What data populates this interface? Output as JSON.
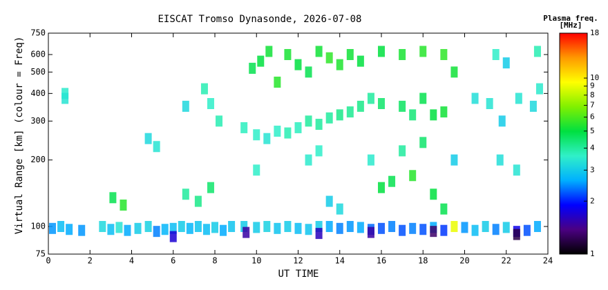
{
  "chart_data": {
    "type": "scatter",
    "title": "EISCAT Tromso Dynasonde, 2026-07-08",
    "x_label": "UT TIME",
    "y_label": "Virtual Range [km] (colour = Freq)",
    "colorbar_title": "Plasma freq.",
    "colorbar_unit": "[MHz]",
    "xlim": [
      0,
      24
    ],
    "xticks": [
      0,
      2,
      4,
      6,
      8,
      10,
      12,
      14,
      16,
      18,
      20,
      22,
      24
    ],
    "ylim": [
      75,
      750
    ],
    "yticks": [
      75,
      100,
      200,
      300,
      400,
      500,
      600,
      750
    ],
    "ylog": true,
    "clim": [
      1,
      18
    ],
    "cticks": [
      1,
      2,
      3,
      4,
      5,
      6,
      7,
      8,
      9,
      10,
      18
    ],
    "clog": true,
    "colormap": [
      "#000000",
      "#4b0082",
      "#0000ff",
      "#00b0ff",
      "#30f0c8",
      "#00e040",
      "#80f000",
      "#ffff00",
      "#ff9900",
      "#ff0000"
    ],
    "x": [
      0.2,
      0.6,
      1.0,
      1.6,
      2.6,
      3.0,
      3.4,
      3.8,
      4.3,
      4.8,
      5.2,
      5.6,
      6.0,
      6.4,
      6.8,
      7.2,
      7.6,
      8.0,
      8.4,
      8.8,
      9.4,
      10.0,
      10.5,
      11.0,
      11.5,
      12.0,
      12.5,
      13.0,
      13.5,
      14.0,
      14.5,
      15.0,
      15.5,
      16.0,
      16.5,
      17.0,
      17.5,
      18.0,
      18.5,
      19.0,
      19.5,
      20.0,
      20.5,
      21.0,
      21.5,
      22.0,
      22.5,
      23.0,
      23.5,
      6.0,
      9.5,
      13.0,
      15.5,
      18.5,
      22.5,
      6.6,
      7.2,
      7.8,
      3.1,
      3.6,
      16.0,
      16.5,
      17.5,
      18.5,
      19.0,
      14.0,
      13.5,
      0.8,
      4.8,
      5.2,
      6.6,
      7.5,
      7.8,
      8.2,
      9.4,
      10.0,
      10.5,
      11.0,
      11.5,
      12.0,
      12.5,
      13.0,
      13.5,
      14.0,
      14.5,
      15.0,
      15.5,
      16.0,
      17.0,
      17.5,
      18.0,
      18.5,
      19.0,
      20.5,
      21.2,
      21.8,
      22.6,
      23.3,
      23.6,
      9.8,
      10.2,
      10.6,
      11.0,
      11.5,
      12.0,
      12.5,
      13.0,
      13.5,
      14.0,
      14.5,
      15.0,
      16.0,
      17.0,
      18.0,
      19.0,
      19.5,
      21.5,
      22.0,
      23.5,
      19.5,
      21.7,
      22.5,
      17.0,
      18.0,
      15.5,
      10.0,
      12.5,
      13.0,
      0.8
    ],
    "y": [
      98,
      100,
      97,
      96,
      100,
      97,
      99,
      96,
      98,
      100,
      95,
      97,
      98,
      100,
      98,
      100,
      97,
      99,
      96,
      100,
      100,
      99,
      100,
      98,
      100,
      98,
      97,
      100,
      100,
      98,
      100,
      99,
      97,
      98,
      100,
      96,
      98,
      97,
      99,
      96,
      100,
      99,
      96,
      100,
      97,
      99,
      95,
      96,
      100,
      90,
      94,
      93,
      94,
      95,
      92,
      140,
      130,
      150,
      135,
      125,
      150,
      160,
      170,
      140,
      120,
      120,
      130,
      400,
      250,
      230,
      350,
      420,
      360,
      300,
      280,
      260,
      250,
      270,
      265,
      280,
      300,
      290,
      310,
      320,
      330,
      350,
      380,
      360,
      350,
      320,
      380,
      320,
      330,
      380,
      360,
      300,
      380,
      350,
      420,
      520,
      560,
      620,
      450,
      600,
      540,
      500,
      620,
      580,
      540,
      600,
      560,
      620,
      600,
      620,
      600,
      500,
      600,
      550,
      620,
      200,
      200,
      180,
      220,
      240,
      200,
      180,
      200,
      220,
      380
    ],
    "freq": [
      2.5,
      2.8,
      2.6,
      2.5,
      3.2,
      2.8,
      3.4,
      2.6,
      3,
      3.1,
      2.4,
      2.7,
      2.8,
      3,
      2.7,
      2.9,
      2.8,
      3,
      2.6,
      2.9,
      3,
      3,
      3.1,
      2.9,
      3,
      2.8,
      2.9,
      3,
      2.6,
      2.4,
      2.5,
      2.6,
      2.3,
      2.2,
      2.4,
      2.2,
      2.4,
      2.2,
      2.6,
      2.1,
      9,
      2.5,
      2.8,
      3,
      2.4,
      3,
      1.8,
      2.2,
      2.6,
      1.7,
      1.5,
      1.6,
      1.5,
      1.3,
      1.2,
      4,
      4.2,
      4.5,
      4.8,
      5.5,
      5,
      4.8,
      5.5,
      5,
      4.8,
      3.2,
      3,
      3.5,
      3.2,
      3.4,
      3.2,
      3.8,
      3.6,
      3.8,
      3.7,
      3.6,
      3.4,
      3.6,
      3.8,
      3.7,
      4,
      4,
      4,
      4.2,
      4.1,
      4.2,
      4,
      4.5,
      4.6,
      4.4,
      4.8,
      5,
      5.2,
      3.3,
      3.4,
      3,
      3.4,
      3.2,
      3.5,
      4.8,
      5,
      5.2,
      5.5,
      5.3,
      5,
      4.8,
      5.2,
      5.6,
      5.4,
      5.2,
      5,
      5,
      5.3,
      5.5,
      5.6,
      5.2,
      3.6,
      3,
      3.8,
      3,
      3.3,
      3.4,
      4,
      4.5,
      3.5,
      3.6,
      3.5,
      3.6,
      3.4
    ]
  }
}
